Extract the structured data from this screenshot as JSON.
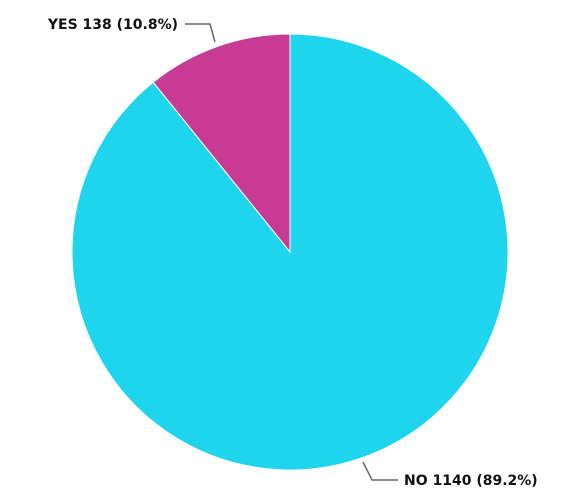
{
  "chart_data": {
    "type": "pie",
    "title": "",
    "slices": [
      {
        "label": "YES",
        "value": 138,
        "percent": "10.8%",
        "color": "#c73b94",
        "text": "YES 138 (10.8%)"
      },
      {
        "label": "NO",
        "value": 1140,
        "percent": "89.2%",
        "color": "#1fd5ee",
        "text": "NO 1140 (89.2%)"
      }
    ]
  }
}
